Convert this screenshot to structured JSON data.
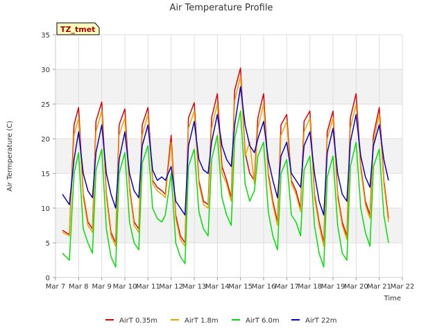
{
  "chart_data": {
    "type": "line",
    "title": "Air Temperature Profile",
    "xlabel": "Time",
    "ylabel": "Air Termperature (C)",
    "badge": "TZ_tmet",
    "ylim": [
      0,
      35
    ],
    "yticks": [
      0,
      5,
      10,
      15,
      20,
      25,
      30,
      35
    ],
    "xlim": [
      7,
      22
    ],
    "xticks": [
      {
        "x": 7,
        "label": "Mar 7"
      },
      {
        "x": 8,
        "label": "Mar 8"
      },
      {
        "x": 9,
        "label": "Mar 9"
      },
      {
        "x": 10,
        "label": "Mar 10"
      },
      {
        "x": 11,
        "label": "Mar 11"
      },
      {
        "x": 12,
        "label": "Mar 12"
      },
      {
        "x": 13,
        "label": "Mar 13"
      },
      {
        "x": 14,
        "label": "Mar 14"
      },
      {
        "x": 15,
        "label": "Mar 15"
      },
      {
        "x": 16,
        "label": "Mar 16"
      },
      {
        "x": 17,
        "label": "Mar 17"
      },
      {
        "x": 18,
        "label": "Mar 18"
      },
      {
        "x": 19,
        "label": "Mar 19"
      },
      {
        "x": 20,
        "label": "Mar 20"
      },
      {
        "x": 21,
        "label": "Mar 21"
      },
      {
        "x": 22,
        "label": "Mar 22"
      }
    ],
    "grid": true,
    "legend_position": "bottom",
    "series": [
      {
        "name": "AirT 0.35m",
        "color": "#e00000",
        "x": [
          7.3,
          7.6,
          7.8,
          8.0,
          8.2,
          8.4,
          8.6,
          8.75,
          9.0,
          9.2,
          9.4,
          9.6,
          9.75,
          10.0,
          10.2,
          10.4,
          10.6,
          10.75,
          11.0,
          11.2,
          11.4,
          11.6,
          11.75,
          12.0,
          12.2,
          12.4,
          12.6,
          12.75,
          13.0,
          13.2,
          13.4,
          13.6,
          13.75,
          14.0,
          14.2,
          14.4,
          14.6,
          14.75,
          15.0,
          15.2,
          15.4,
          15.6,
          15.75,
          16.0,
          16.2,
          16.4,
          16.6,
          16.75,
          17.0,
          17.2,
          17.4,
          17.6,
          17.75,
          18.0,
          18.2,
          18.4,
          18.6,
          18.75,
          19.0,
          19.2,
          19.4,
          19.6,
          19.75,
          20.0,
          20.2,
          20.4,
          20.6,
          20.75,
          21.0,
          21.2,
          21.4
        ],
        "y": [
          6.8,
          6.2,
          22.0,
          24.5,
          12.0,
          8.0,
          7.0,
          22.5,
          25.3,
          12.0,
          6.5,
          5.0,
          22.0,
          24.3,
          13.0,
          8.0,
          7.0,
          22.0,
          24.5,
          14.0,
          13.0,
          12.5,
          12.0,
          20.5,
          9.0,
          6.0,
          5.0,
          23.0,
          25.2,
          14.0,
          11.0,
          10.5,
          23.0,
          26.5,
          16.0,
          14.0,
          11.5,
          27.0,
          30.2,
          18.0,
          15.0,
          14.0,
          23.0,
          26.5,
          15.0,
          11.0,
          8.0,
          22.0,
          23.5,
          14.0,
          12.5,
          10.0,
          22.5,
          24.0,
          12.0,
          8.0,
          5.0,
          21.0,
          24.0,
          12.0,
          8.0,
          6.0,
          23.0,
          26.5,
          16.0,
          11.0,
          9.0,
          20.5,
          24.5,
          14.0,
          8.5
        ]
      },
      {
        "name": "AirT 1.8m",
        "color": "#f0a000",
        "x": [
          7.3,
          7.6,
          7.8,
          8.0,
          8.2,
          8.4,
          8.6,
          8.75,
          9.0,
          9.2,
          9.4,
          9.6,
          9.75,
          10.0,
          10.2,
          10.4,
          10.6,
          10.75,
          11.0,
          11.2,
          11.4,
          11.6,
          11.75,
          12.0,
          12.2,
          12.4,
          12.6,
          12.75,
          13.0,
          13.2,
          13.4,
          13.6,
          13.75,
          14.0,
          14.2,
          14.4,
          14.6,
          14.75,
          15.0,
          15.2,
          15.4,
          15.6,
          15.75,
          16.0,
          16.2,
          16.4,
          16.6,
          16.75,
          17.0,
          17.2,
          17.4,
          17.6,
          17.75,
          18.0,
          18.2,
          18.4,
          18.6,
          18.75,
          19.0,
          19.2,
          19.4,
          19.6,
          19.75,
          20.0,
          20.2,
          20.4,
          20.6,
          20.75,
          21.0,
          21.2,
          21.4
        ],
        "y": [
          6.5,
          6.0,
          20.5,
          23.0,
          11.5,
          7.5,
          6.5,
          21.0,
          24.0,
          11.5,
          6.0,
          4.5,
          20.5,
          23.0,
          12.5,
          7.5,
          6.5,
          20.5,
          23.5,
          13.5,
          12.5,
          12.0,
          11.5,
          19.5,
          8.5,
          5.5,
          4.5,
          21.5,
          24.0,
          13.5,
          10.5,
          10.0,
          21.5,
          25.0,
          15.0,
          13.5,
          11.0,
          25.5,
          29.0,
          17.5,
          19.5,
          13.5,
          21.5,
          25.0,
          14.5,
          10.5,
          7.5,
          20.5,
          22.5,
          13.5,
          12.0,
          9.5,
          21.0,
          23.0,
          11.5,
          7.5,
          4.5,
          20.0,
          23.0,
          11.5,
          7.5,
          5.5,
          21.5,
          25.0,
          15.5,
          10.5,
          8.5,
          19.5,
          23.5,
          13.5,
          8.0
        ]
      },
      {
        "name": "AirT 6.0m",
        "color": "#00e000",
        "x": [
          7.3,
          7.6,
          7.8,
          8.0,
          8.2,
          8.4,
          8.6,
          8.75,
          9.0,
          9.2,
          9.4,
          9.6,
          9.75,
          10.0,
          10.2,
          10.4,
          10.6,
          10.75,
          11.0,
          11.2,
          11.4,
          11.6,
          11.75,
          12.0,
          12.2,
          12.4,
          12.6,
          12.75,
          13.0,
          13.2,
          13.4,
          13.6,
          13.75,
          14.0,
          14.2,
          14.4,
          14.6,
          14.75,
          15.0,
          15.2,
          15.4,
          15.6,
          15.75,
          16.0,
          16.2,
          16.4,
          16.6,
          16.75,
          17.0,
          17.2,
          17.4,
          17.6,
          17.75,
          18.0,
          18.2,
          18.4,
          18.6,
          18.75,
          19.0,
          19.2,
          19.4,
          19.6,
          19.75,
          20.0,
          20.2,
          20.4,
          20.6,
          20.75,
          21.0,
          21.2,
          21.4
        ],
        "y": [
          3.5,
          2.5,
          15.0,
          18.0,
          7.0,
          5.0,
          3.5,
          15.5,
          18.5,
          7.0,
          3.0,
          1.5,
          15.0,
          18.0,
          8.0,
          5.0,
          4.0,
          16.5,
          19.0,
          10.0,
          8.5,
          8.0,
          9.0,
          15.0,
          5.0,
          3.0,
          2.0,
          16.0,
          18.5,
          9.5,
          7.0,
          6.0,
          17.0,
          20.5,
          11.5,
          9.0,
          7.5,
          20.0,
          24.0,
          13.5,
          11.0,
          12.5,
          17.5,
          19.5,
          9.5,
          6.0,
          4.0,
          15.0,
          17.0,
          9.0,
          8.0,
          6.0,
          15.5,
          17.5,
          7.5,
          3.5,
          1.5,
          14.5,
          17.5,
          7.5,
          3.5,
          2.5,
          16.0,
          19.5,
          10.0,
          6.5,
          4.5,
          16.0,
          18.5,
          9.0,
          5.0
        ]
      },
      {
        "name": "AirT 22m",
        "color": "#0000d0",
        "x": [
          7.3,
          7.6,
          7.8,
          8.0,
          8.2,
          8.4,
          8.6,
          8.75,
          9.0,
          9.2,
          9.4,
          9.6,
          9.75,
          10.0,
          10.2,
          10.4,
          10.6,
          10.75,
          11.0,
          11.2,
          11.4,
          11.6,
          11.75,
          12.0,
          12.2,
          12.4,
          12.6,
          12.75,
          13.0,
          13.2,
          13.4,
          13.6,
          13.75,
          14.0,
          14.2,
          14.4,
          14.6,
          14.75,
          15.0,
          15.2,
          15.4,
          15.6,
          15.75,
          16.0,
          16.2,
          16.4,
          16.6,
          16.75,
          17.0,
          17.2,
          17.4,
          17.6,
          17.75,
          18.0,
          18.2,
          18.4,
          18.6,
          18.75,
          19.0,
          19.2,
          19.4,
          19.6,
          19.75,
          20.0,
          20.2,
          20.4,
          20.6,
          20.75,
          21.0,
          21.2,
          21.4
        ],
        "y": [
          12.0,
          10.5,
          17.0,
          21.0,
          15.0,
          12.5,
          11.5,
          18.0,
          22.0,
          15.0,
          12.0,
          10.0,
          17.0,
          21.0,
          15.0,
          12.5,
          11.5,
          19.0,
          22.0,
          15.5,
          14.0,
          14.5,
          14.0,
          16.0,
          11.0,
          10.0,
          9.0,
          19.0,
          22.5,
          17.0,
          15.5,
          15.0,
          19.5,
          23.5,
          19.0,
          17.0,
          16.0,
          22.0,
          27.5,
          22.0,
          19.0,
          18.0,
          20.0,
          22.5,
          17.0,
          14.0,
          11.5,
          17.5,
          19.5,
          15.0,
          14.0,
          13.0,
          19.0,
          21.0,
          15.0,
          11.0,
          9.0,
          18.0,
          21.5,
          15.0,
          12.0,
          11.0,
          19.5,
          23.5,
          17.5,
          14.5,
          13.0,
          19.0,
          22.0,
          17.0,
          14.0
        ]
      }
    ]
  }
}
